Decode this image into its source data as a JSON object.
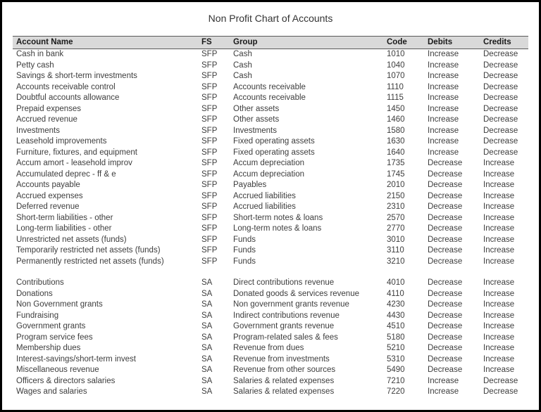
{
  "title": "Non Profit Chart of Accounts",
  "table": {
    "headers": [
      "Account Name",
      "FS",
      "Group",
      "Code",
      "Debits",
      "Credits"
    ],
    "sections": [
      {
        "rows": [
          {
            "account": "Cash in bank",
            "fs": "SFP",
            "group": "Cash",
            "code": "1010",
            "debits": "Increase",
            "credits": "Decrease"
          },
          {
            "account": "Petty cash",
            "fs": "SFP",
            "group": "Cash",
            "code": "1040",
            "debits": "Increase",
            "credits": "Decrease"
          },
          {
            "account": "Savings & short-term investments",
            "fs": "SFP",
            "group": "Cash",
            "code": "1070",
            "debits": "Increase",
            "credits": "Decrease"
          },
          {
            "account": "Accounts receivable control",
            "fs": "SFP",
            "group": "Accounts receivable",
            "code": "1110",
            "debits": "Increase",
            "credits": "Decrease"
          },
          {
            "account": "Doubtful accounts allowance",
            "fs": "SFP",
            "group": "Accounts receivable",
            "code": "1115",
            "debits": "Increase",
            "credits": "Decrease"
          },
          {
            "account": "Prepaid expenses",
            "fs": "SFP",
            "group": "Other assets",
            "code": "1450",
            "debits": "Increase",
            "credits": "Decrease"
          },
          {
            "account": "Accrued revenue",
            "fs": "SFP",
            "group": "Other assets",
            "code": "1460",
            "debits": "Increase",
            "credits": "Decrease"
          },
          {
            "account": "Investments",
            "fs": "SFP",
            "group": "Investments",
            "code": "1580",
            "debits": "Increase",
            "credits": "Decrease"
          },
          {
            "account": "Leasehold improvements",
            "fs": "SFP",
            "group": "Fixed operating assets",
            "code": "1630",
            "debits": "Increase",
            "credits": "Decrease"
          },
          {
            "account": "Furniture, fixtures, and equipment",
            "fs": "SFP",
            "group": "Fixed operating assets",
            "code": "1640",
            "debits": "Increase",
            "credits": "Decrease"
          },
          {
            "account": "Accum amort - leasehold improv",
            "fs": "SFP",
            "group": "Accum depreciation",
            "code": "1735",
            "debits": "Decrease",
            "credits": "Increase"
          },
          {
            "account": "Accumulated deprec - ff & e",
            "fs": "SFP",
            "group": "Accum depreciation",
            "code": "1745",
            "debits": "Decrease",
            "credits": "Increase"
          },
          {
            "account": "Accounts payable",
            "fs": "SFP",
            "group": "Payables",
            "code": "2010",
            "debits": "Decrease",
            "credits": "Increase"
          },
          {
            "account": "Accrued expenses",
            "fs": "SFP",
            "group": "Accrued liabilities",
            "code": "2150",
            "debits": "Decrease",
            "credits": "Increase"
          },
          {
            "account": "Deferred revenue",
            "fs": "SFP",
            "group": "Accrued liabilities",
            "code": "2310",
            "debits": "Decrease",
            "credits": "Increase"
          },
          {
            "account": "Short-term liabilities - other",
            "fs": "SFP",
            "group": "Short-term notes & loans",
            "code": "2570",
            "debits": "Decrease",
            "credits": "Increase"
          },
          {
            "account": "Long-term liabilities - other",
            "fs": "SFP",
            "group": "Long-term notes & loans",
            "code": "2770",
            "debits": "Decrease",
            "credits": "Increase"
          },
          {
            "account": "Unrestricted net assets (funds)",
            "fs": "SFP",
            "group": "Funds",
            "code": "3010",
            "debits": "Decrease",
            "credits": "Increase"
          },
          {
            "account": "Temporarily restricted  net assets (funds)",
            "fs": "SFP",
            "group": "Funds",
            "code": "3110",
            "debits": "Decrease",
            "credits": "Increase"
          },
          {
            "account": "Permanently restricted net assets (funds)",
            "fs": "SFP",
            "group": "Funds",
            "code": "3210",
            "debits": "Decrease",
            "credits": "Increase"
          }
        ]
      },
      {
        "rows": [
          {
            "account": "Contributions",
            "fs": "SA",
            "group": "Direct contributions revenue",
            "code": "4010",
            "debits": "Decrease",
            "credits": "Increase"
          },
          {
            "account": "Donations",
            "fs": "SA",
            "group": "Donated goods & services revenue",
            "code": "4110",
            "debits": "Decrease",
            "credits": "Increase"
          },
          {
            "account": "Non Government grants",
            "fs": "SA",
            "group": "Non government grants revenue",
            "code": "4230",
            "debits": "Decrease",
            "credits": "Increase"
          },
          {
            "account": "Fundraising",
            "fs": "SA",
            "group": "Indirect contributions revenue",
            "code": "4430",
            "debits": "Decrease",
            "credits": "Increase"
          },
          {
            "account": "Government grants",
            "fs": "SA",
            "group": "Government grants revenue",
            "code": "4510",
            "debits": "Decrease",
            "credits": "Increase"
          },
          {
            "account": "Program service fees",
            "fs": "SA",
            "group": "Program-related sales & fees",
            "code": "5180",
            "debits": "Decrease",
            "credits": "Increase"
          },
          {
            "account": "Membership dues",
            "fs": "SA",
            "group": "Revenue from dues",
            "code": "5210",
            "debits": "Decrease",
            "credits": "Increase"
          },
          {
            "account": "Interest-savings/short-term invest",
            "fs": "SA",
            "group": "Revenue from investments",
            "code": "5310",
            "debits": "Decrease",
            "credits": "Increase"
          },
          {
            "account": "Miscellaneous revenue",
            "fs": "SA",
            "group": "Revenue from other sources",
            "code": "5490",
            "debits": "Decrease",
            "credits": "Increase"
          },
          {
            "account": "Officers & directors salaries",
            "fs": "SA",
            "group": "Salaries & related expenses",
            "code": "7210",
            "debits": "Increase",
            "credits": "Decrease"
          },
          {
            "account": "Wages and salaries",
            "fs": "SA",
            "group": "Salaries & related expenses",
            "code": "7220",
            "debits": "Increase",
            "credits": "Decrease"
          }
        ]
      }
    ]
  },
  "colors": {
    "header_background": "#d9d9d9",
    "header_border": "#595959",
    "page_border": "#000000",
    "body_text": "#3d3d3d"
  }
}
